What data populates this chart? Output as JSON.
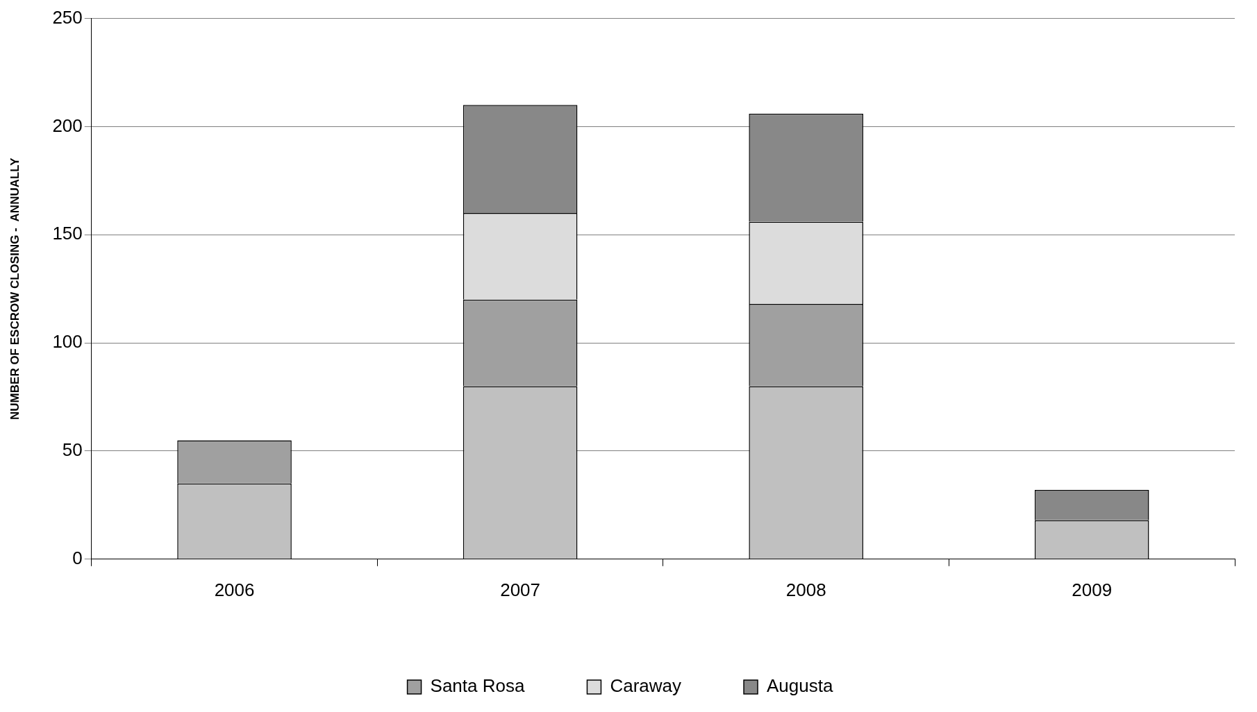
{
  "chart_data": {
    "type": "bar",
    "stacked": true,
    "ylabel": "NUMBER OF ESCROW CLOSING -  ANNUALLY",
    "categories": [
      "2006",
      "2007",
      "2008",
      "2009"
    ],
    "series": [
      {
        "color": "#c0c0c0",
        "values": [
          35,
          80,
          80,
          18
        ]
      },
      {
        "name": "Santa Rosa",
        "color": "#a0a0a0",
        "values": [
          20,
          40,
          38,
          null
        ]
      },
      {
        "name": "Caraway",
        "color": "#dcdcdc",
        "values": [
          null,
          40,
          38,
          null
        ]
      },
      {
        "name": "Augusta",
        "color": "#888888",
        "values": [
          null,
          50,
          50,
          14
        ]
      }
    ],
    "ylim": [
      0,
      250
    ],
    "yticks": [
      0,
      50,
      100,
      150,
      200,
      250
    ],
    "grid": "y",
    "legend": "bottom"
  }
}
